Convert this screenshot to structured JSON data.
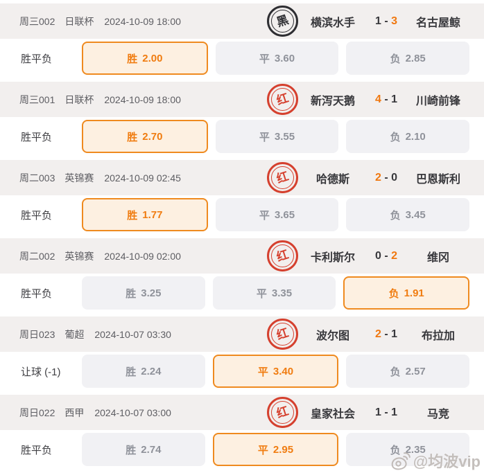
{
  "colors": {
    "accent_orange": "#f07c10",
    "selected_border": "#ef8a1f",
    "selected_bg": "#fdf0e1",
    "badge_red": "#d5402e",
    "badge_black": "#2e2e32",
    "info_row_bg": "#f2efee",
    "button_bg": "#f1f1f4"
  },
  "watermark": {
    "text": "@均波vip",
    "icon": "weibo-icon"
  },
  "matches": [
    {
      "id": "周三002",
      "league": "日联杯",
      "datetime": "2024-10-09 18:00",
      "badge": {
        "char": "黑",
        "type": "black"
      },
      "home": "横滨水手",
      "away": "名古屋鲸",
      "score": {
        "home": "1",
        "sep": "-",
        "away": "3"
      },
      "winner": "away",
      "bet_type": "胜平负",
      "odds": [
        {
          "label": "胜",
          "value": "2.00",
          "selected": true
        },
        {
          "label": "平",
          "value": "3.60",
          "selected": false
        },
        {
          "label": "负",
          "value": "2.85",
          "selected": false
        }
      ]
    },
    {
      "id": "周三001",
      "league": "日联杯",
      "datetime": "2024-10-09 18:00",
      "badge": {
        "char": "红",
        "type": "red"
      },
      "home": "新泻天鹅",
      "away": "川崎前锋",
      "score": {
        "home": "4",
        "sep": "-",
        "away": "1"
      },
      "winner": "home",
      "bet_type": "胜平负",
      "odds": [
        {
          "label": "胜",
          "value": "2.70",
          "selected": true
        },
        {
          "label": "平",
          "value": "3.55",
          "selected": false
        },
        {
          "label": "负",
          "value": "2.10",
          "selected": false
        }
      ]
    },
    {
      "id": "周二003",
      "league": "英锦赛",
      "datetime": "2024-10-09 02:45",
      "badge": {
        "char": "红",
        "type": "red"
      },
      "home": "哈德斯",
      "away": "巴恩斯利",
      "score": {
        "home": "2",
        "sep": "-",
        "away": "0"
      },
      "winner": "home",
      "bet_type": "胜平负",
      "odds": [
        {
          "label": "胜",
          "value": "1.77",
          "selected": true
        },
        {
          "label": "平",
          "value": "3.65",
          "selected": false
        },
        {
          "label": "负",
          "value": "3.45",
          "selected": false
        }
      ]
    },
    {
      "id": "周二002",
      "league": "英锦赛",
      "datetime": "2024-10-09 02:00",
      "badge": {
        "char": "红",
        "type": "red"
      },
      "home": "卡利斯尔",
      "away": "维冈",
      "score": {
        "home": "0",
        "sep": "-",
        "away": "2"
      },
      "winner": "away",
      "bet_type": "胜平负",
      "odds": [
        {
          "label": "胜",
          "value": "3.25",
          "selected": false
        },
        {
          "label": "平",
          "value": "3.35",
          "selected": false
        },
        {
          "label": "负",
          "value": "1.91",
          "selected": true
        }
      ]
    },
    {
      "id": "周日023",
      "league": "葡超",
      "datetime": "2024-10-07 03:30",
      "badge": {
        "char": "红",
        "type": "red"
      },
      "home": "波尔图",
      "away": "布拉加",
      "score": {
        "home": "2",
        "sep": "-",
        "away": "1"
      },
      "winner": "home",
      "bet_type": "让球 (-1)",
      "odds": [
        {
          "label": "胜",
          "value": "2.24",
          "selected": false
        },
        {
          "label": "平",
          "value": "3.40",
          "selected": true
        },
        {
          "label": "负",
          "value": "2.57",
          "selected": false
        }
      ]
    },
    {
      "id": "周日022",
      "league": "西甲",
      "datetime": "2024-10-07 03:00",
      "badge": {
        "char": "红",
        "type": "red"
      },
      "home": "皇家社会",
      "away": "马竞",
      "score": {
        "home": "1",
        "sep": "-",
        "away": "1"
      },
      "winner": "draw",
      "bet_type": "胜平负",
      "odds": [
        {
          "label": "胜",
          "value": "2.74",
          "selected": false
        },
        {
          "label": "平",
          "value": "2.95",
          "selected": true
        },
        {
          "label": "负",
          "value": "2.35",
          "selected": false
        }
      ]
    }
  ]
}
